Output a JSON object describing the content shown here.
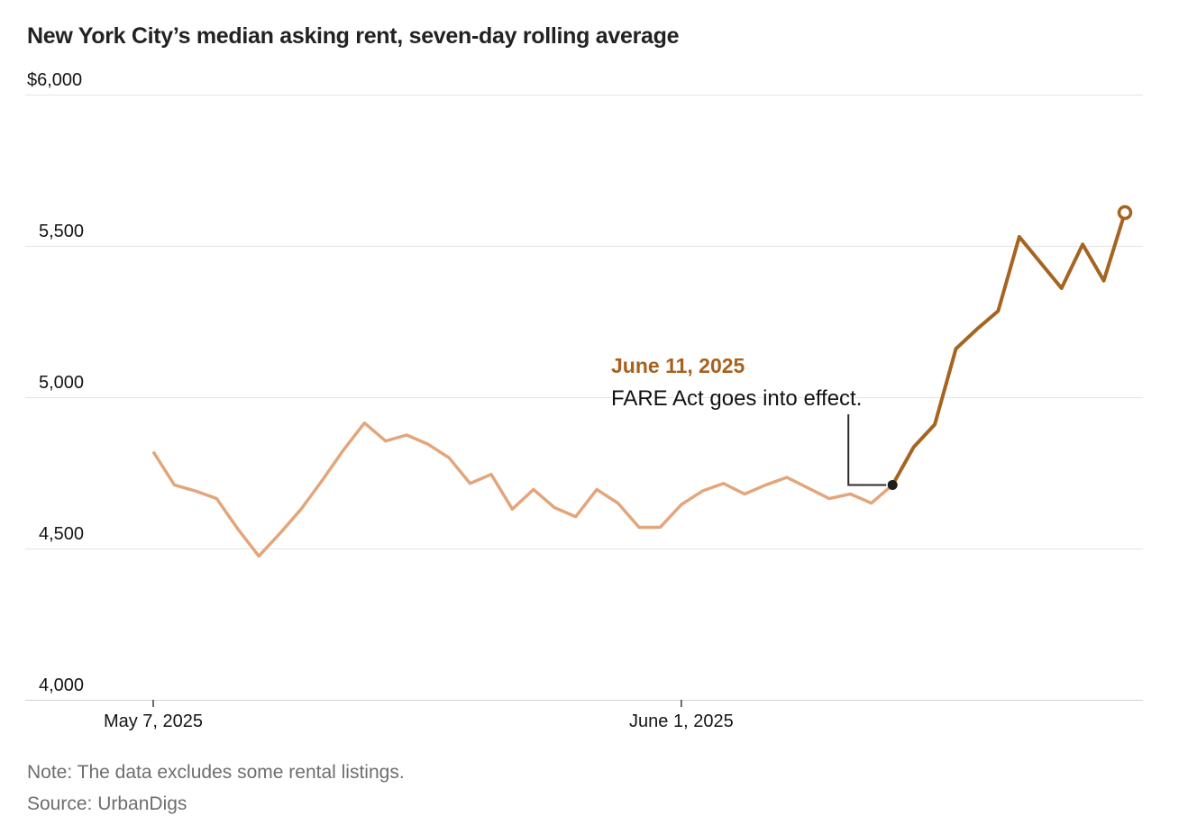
{
  "title": "New York City’s median asking rent, seven-day rolling average",
  "note": "Note: The data excludes some rental listings.",
  "source": "Source: UrbanDigs",
  "colors": {
    "pre_line": "#e3a67c",
    "post_line": "#a5641f",
    "annotation_date": "#a9601c",
    "connector": "#2b2b2b",
    "dot": "#1d1d1d",
    "grid": "#e4e4e4",
    "axis": "#d2d2d2",
    "tick": "#3c3c3c",
    "text_dark": "#141414",
    "text_gray": "#6e6e6e"
  },
  "chart_data": {
    "type": "line",
    "title": "New York City’s median asking rent, seven-day rolling average",
    "xlabel": "",
    "ylabel": "",
    "ylim": [
      4000,
      6000
    ],
    "grid": "horizontal",
    "legend": "none",
    "x_dates": [
      "May 7",
      "May 8",
      "May 9",
      "May 10",
      "May 11",
      "May 12",
      "May 13",
      "May 14",
      "May 15",
      "May 16",
      "May 17",
      "May 18",
      "May 19",
      "May 20",
      "May 21",
      "May 22",
      "May 23",
      "May 24",
      "May 25",
      "May 26",
      "May 27",
      "May 28",
      "May 29",
      "May 30",
      "May 31",
      "June 1",
      "June 2",
      "June 3",
      "June 4",
      "June 5",
      "June 6",
      "June 7",
      "June 8",
      "June 9",
      "June 10",
      "June 11",
      "June 12",
      "June 13",
      "June 14",
      "June 15",
      "June 16",
      "June 17",
      "June 18",
      "June 19",
      "June 20",
      "June 21",
      "June 22"
    ],
    "y_ticks": [
      {
        "label": "$6,000",
        "value": 6000
      },
      {
        "label": "5,500",
        "value": 5500
      },
      {
        "label": "5,000",
        "value": 5000
      },
      {
        "label": "4,500",
        "value": 4500
      },
      {
        "label": "4,000",
        "value": 4000
      }
    ],
    "x_ticks": [
      {
        "label": "May 7, 2025",
        "date": "May 7"
      },
      {
        "label": "June 1, 2025",
        "date": "June 1"
      }
    ],
    "series": [
      {
        "name": "before-june-11",
        "color": "#e3a67c",
        "width": 3.5,
        "start_index": 0,
        "values": [
          4820,
          4710,
          4690,
          4665,
          4565,
          4475,
          4550,
          4630,
          4725,
          4825,
          4915,
          4855,
          4875,
          4845,
          4800,
          4715,
          4745,
          4630,
          4695,
          4635,
          4605,
          4695,
          4650,
          4570,
          4570,
          4645,
          4690,
          4715,
          4680,
          4710,
          4735,
          4700,
          4665,
          4680,
          4650,
          4710
        ]
      },
      {
        "name": "from-june-11",
        "color": "#a5641f",
        "width": 4,
        "start_index": 35,
        "values": [
          4710,
          4835,
          4910,
          5160,
          5225,
          5285,
          5530,
          5445,
          5360,
          5505,
          5385,
          5610
        ]
      }
    ],
    "annotation": {
      "date_label": "June 11, 2025",
      "text": "FARE Act goes into effect.",
      "point_date": "June 11",
      "point_value": 4710
    },
    "end_marker": {
      "date": "June 22",
      "value": 5610,
      "style": "open-circle"
    }
  }
}
